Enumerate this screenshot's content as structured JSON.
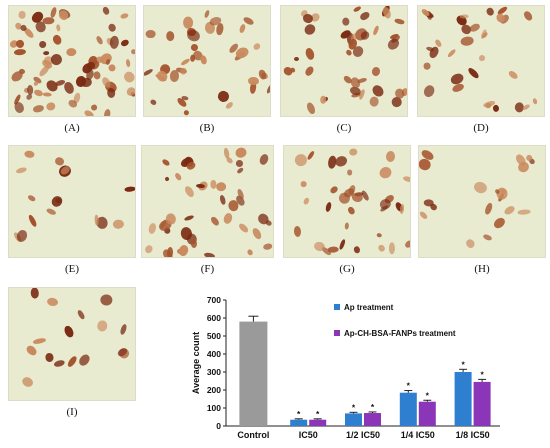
{
  "panels": [
    {
      "label": "(A)"
    },
    {
      "label": "(B)"
    },
    {
      "label": "(C)"
    },
    {
      "label": "(D)"
    },
    {
      "label": "(E)"
    },
    {
      "label": "(F)"
    },
    {
      "label": "(G)"
    },
    {
      "label": "(H)"
    },
    {
      "label": "(I)"
    }
  ],
  "colors": {
    "background_tissue": "#e9ebd0",
    "cell_dark": "#7a2a12",
    "cell_mid": "#a4532c",
    "cell_light": "#c98a5e",
    "control": "#9a9a9a",
    "ap": "#2f7fd0",
    "ap_ch": "#8b35b8"
  },
  "chart_data": {
    "type": "bar",
    "categories": [
      "Control",
      "IC50",
      "1/2 IC50",
      "1/4 IC50",
      "1/8 IC50"
    ],
    "series": [
      {
        "name": "Ap treatment",
        "values": [
          580,
          35,
          70,
          185,
          300
        ]
      },
      {
        "name": "Ap-CH-BSA-FANPs treatment",
        "values": [
          null,
          35,
          72,
          135,
          245
        ]
      }
    ],
    "control_value": 580,
    "error": {
      "control": 30,
      "Ap treatment": [
        null,
        5,
        6,
        12,
        15
      ],
      "Ap-CH-BSA-FANPs treatment": [
        null,
        5,
        6,
        8,
        14
      ]
    },
    "significance_marker": "*",
    "ylabel": "Average count",
    "xlabel": "",
    "ylim": [
      0,
      700
    ],
    "yticks": [
      "0",
      "100",
      "200",
      "300",
      "400",
      "500",
      "600",
      "700"
    ],
    "legend": [
      "Ap treatment",
      "Ap-CH-BSA-FANPs treatment"
    ],
    "legend_placement": "top-right",
    "grid": false
  }
}
